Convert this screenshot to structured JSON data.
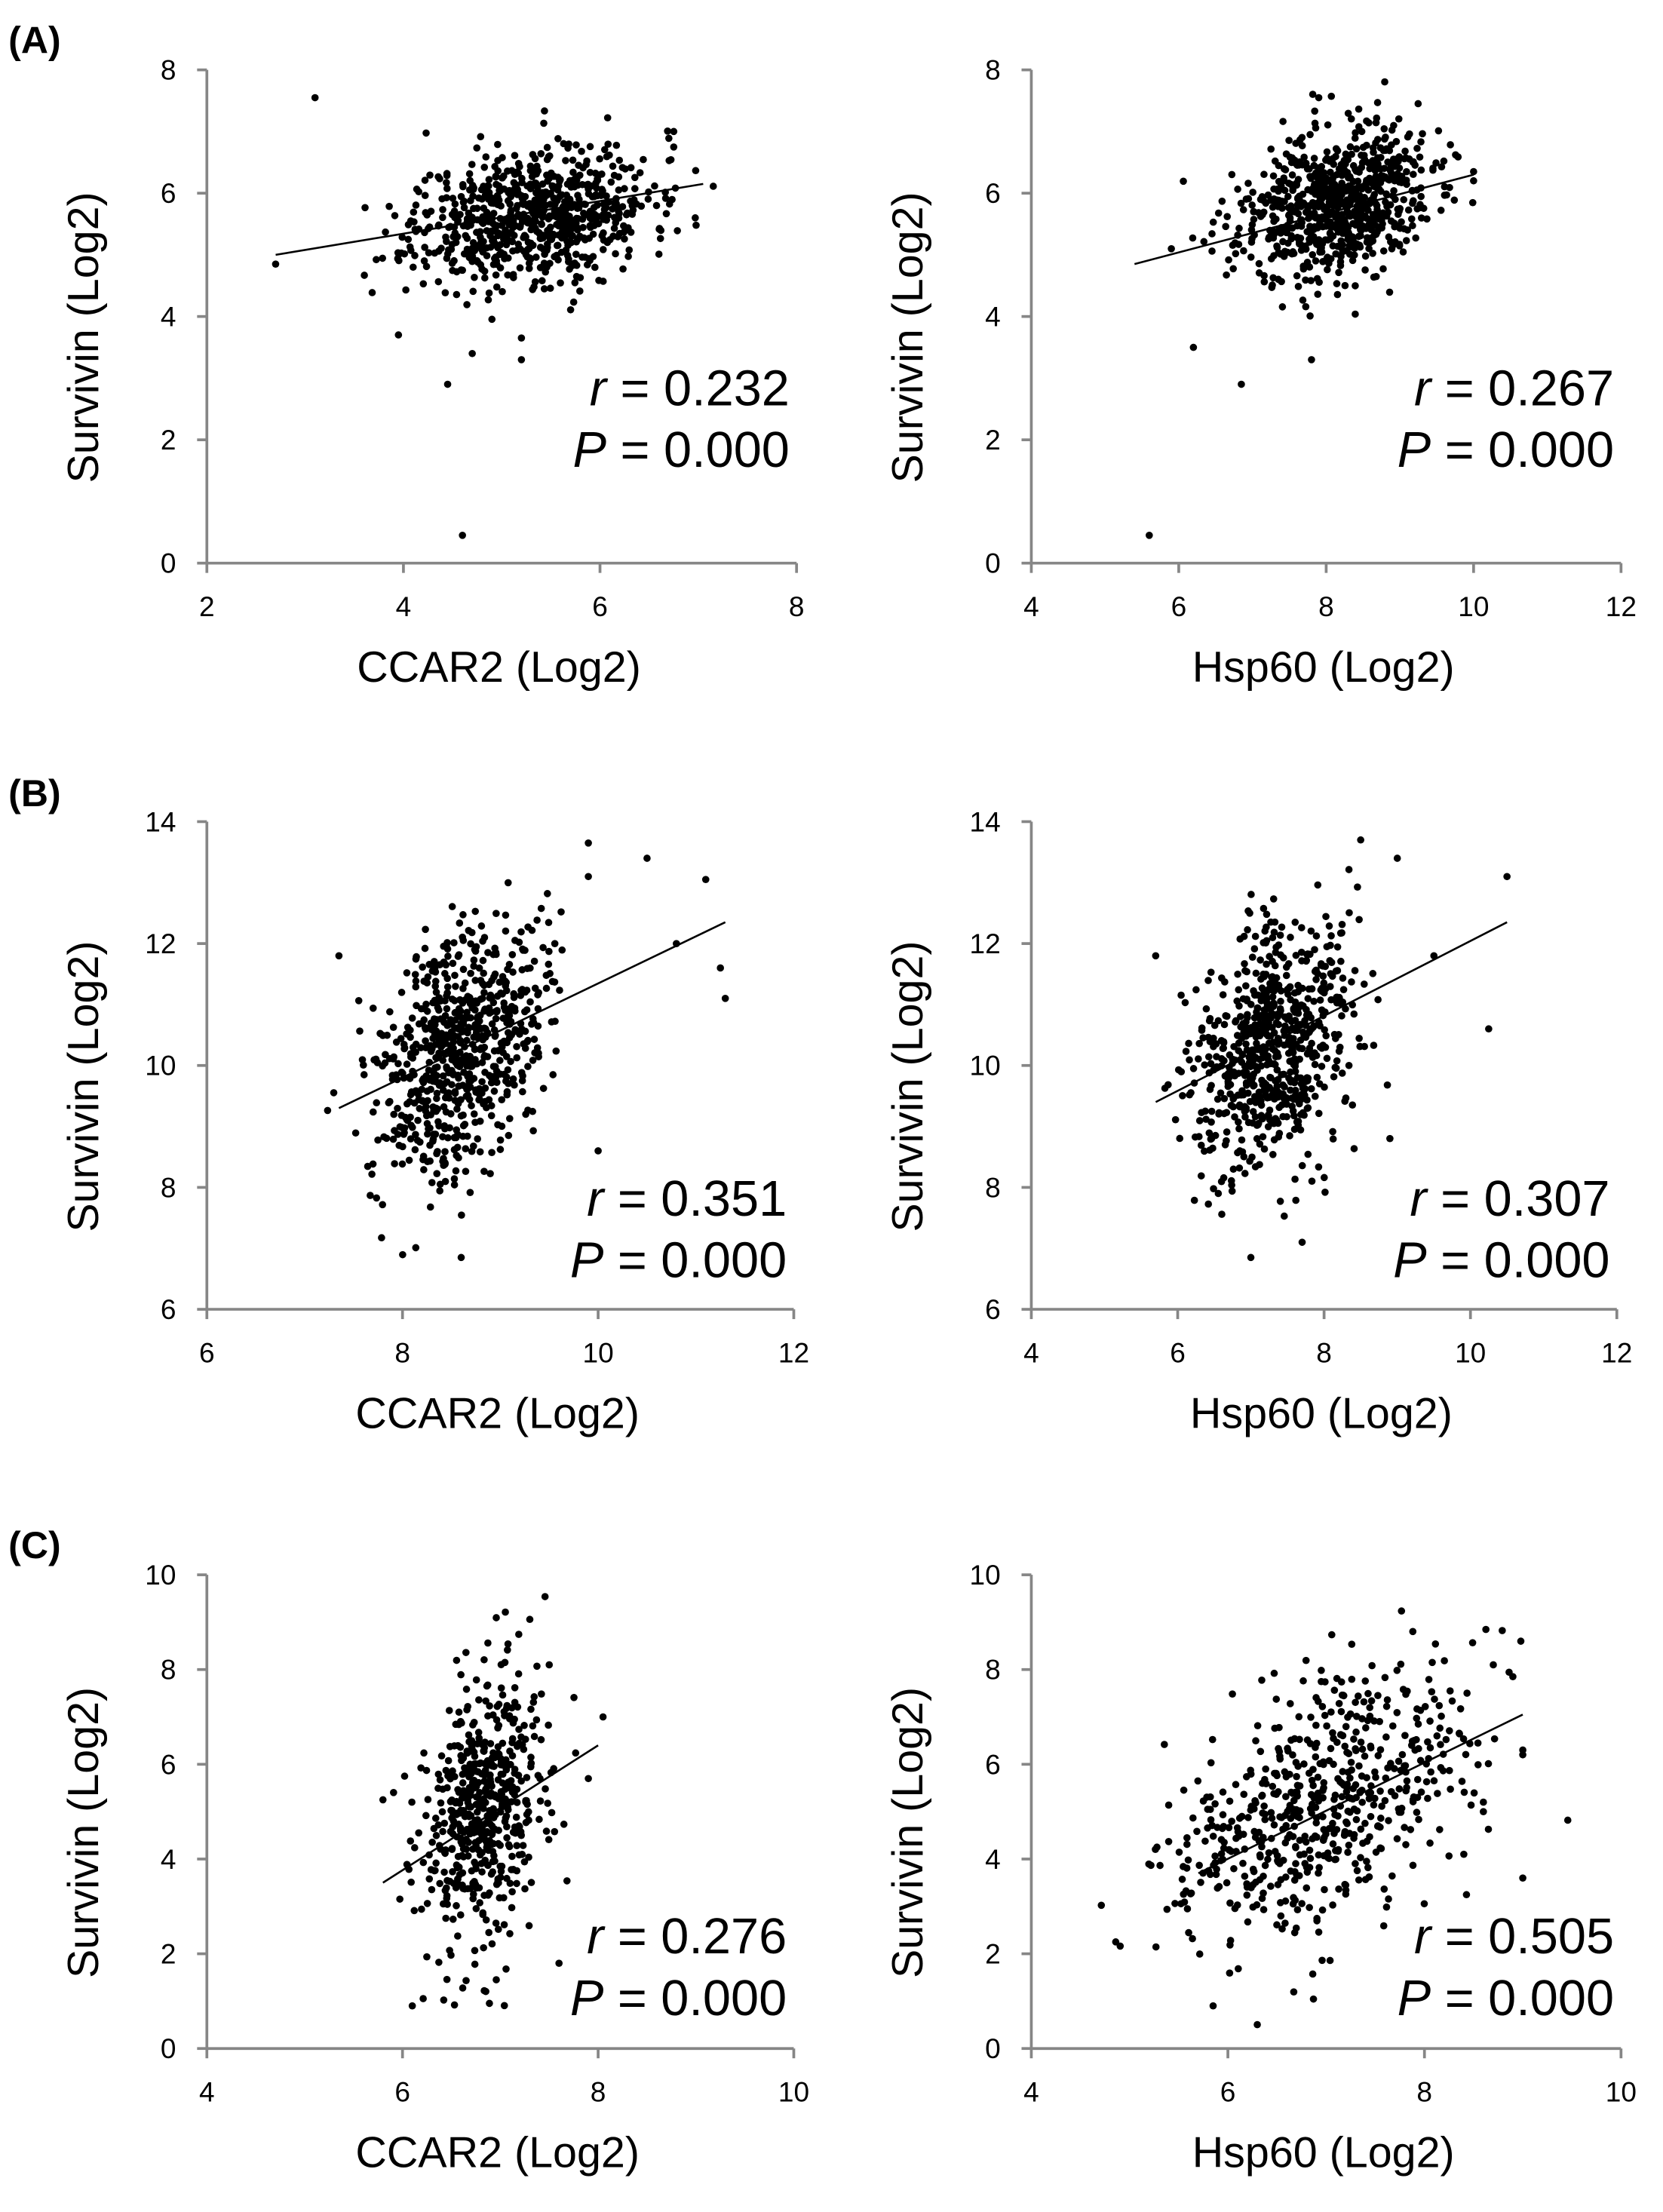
{
  "chart_data": [
    {
      "panel": "(A)",
      "type": "scatter",
      "xlabel": "CCAR2 (Log2)",
      "ylabel": "Survivin (Log2)",
      "xlim": [
        2,
        8
      ],
      "ylim": [
        0,
        8
      ],
      "xticks": [
        2,
        4,
        6,
        8
      ],
      "yticks": [
        0,
        2,
        4,
        6,
        8
      ],
      "stat": {
        "r_sym": "r",
        "r_text": "= 0.232",
        "p_sym": "P",
        "p_text": "= 0.000"
      },
      "fit": [
        [
          2.7,
          5.0
        ],
        [
          7.05,
          6.15
        ]
      ],
      "cloud": {
        "n": 750,
        "mx": 5.3,
        "sx": 0.6,
        "my": 5.65,
        "sy": 0.55,
        "r": 0.232,
        "seed": 11
      },
      "points": [
        [
          3.1,
          7.55
        ],
        [
          4.6,
          0.45
        ],
        [
          2.7,
          4.85
        ],
        [
          4.45,
          2.9
        ],
        [
          3.95,
          3.7
        ],
        [
          4.7,
          3.4
        ],
        [
          5.2,
          3.3
        ],
        [
          5.2,
          3.65
        ],
        [
          6.75,
          7.0
        ],
        [
          6.75,
          6.75
        ]
      ]
    },
    {
      "panel": "(A)",
      "type": "scatter",
      "xlabel": "Hsp60 (Log2)",
      "ylabel": "Survivin (Log2)",
      "xlim": [
        4,
        12
      ],
      "ylim": [
        0,
        8
      ],
      "xticks": [
        4,
        6,
        8,
        10,
        12
      ],
      "yticks": [
        0,
        2,
        4,
        6,
        8
      ],
      "stat": {
        "r_sym": "r",
        "r_text": "= 0.267",
        "p_sym": "P",
        "p_text": "= 0.000"
      },
      "fit": [
        [
          5.4,
          4.85
        ],
        [
          10.0,
          6.3
        ]
      ],
      "cloud": {
        "n": 750,
        "mx": 8.1,
        "sx": 0.65,
        "my": 5.8,
        "sy": 0.6,
        "r": 0.267,
        "seed": 23
      },
      "points": [
        [
          5.6,
          0.45
        ],
        [
          6.2,
          3.5
        ],
        [
          6.85,
          2.9
        ],
        [
          7.9,
          7.55
        ],
        [
          10.0,
          6.2
        ],
        [
          10.0,
          6.35
        ],
        [
          7.8,
          3.3
        ],
        [
          5.9,
          5.1
        ]
      ]
    },
    {
      "panel": "(B)",
      "type": "scatter",
      "xlabel": "CCAR2 (Log2)",
      "ylabel": "Survivin (Log2)",
      "xlim": [
        6,
        12
      ],
      "ylim": [
        6,
        14
      ],
      "xticks": [
        6,
        8,
        10,
        12
      ],
      "yticks": [
        6,
        8,
        10,
        12,
        14
      ],
      "stat": {
        "r_sym": "r",
        "r_text": "= 0.351",
        "p_sym": "P",
        "p_text": "= 0.000"
      },
      "fit": [
        [
          7.35,
          9.3
        ],
        [
          11.3,
          12.35
        ]
      ],
      "cloud": {
        "n": 700,
        "mx": 8.6,
        "sx": 0.42,
        "my": 10.3,
        "sy": 1.05,
        "r": 0.351,
        "seed": 37
      },
      "points": [
        [
          9.9,
          13.65
        ],
        [
          10.5,
          13.4
        ],
        [
          11.1,
          13.05
        ],
        [
          11.3,
          11.1
        ],
        [
          11.25,
          11.6
        ],
        [
          10.0,
          8.6
        ],
        [
          7.35,
          11.8
        ],
        [
          8.6,
          6.85
        ],
        [
          10.8,
          12.0
        ],
        [
          9.9,
          13.1
        ]
      ]
    },
    {
      "panel": "(B)",
      "type": "scatter",
      "xlabel": "Hsp60 (Log2)",
      "ylabel": "Survivin (Log2)",
      "xlim": [
        4,
        12
      ],
      "ylim": [
        6,
        14
      ],
      "xticks": [
        4,
        6,
        8,
        10,
        12
      ],
      "yticks": [
        6,
        8,
        10,
        12,
        14
      ],
      "stat": {
        "r_sym": "r",
        "r_text": "= 0.307",
        "p_sym": "P",
        "p_text": "= 0.000"
      },
      "fit": [
        [
          5.7,
          9.4
        ],
        [
          10.5,
          12.35
        ]
      ],
      "cloud": {
        "n": 700,
        "mx": 7.3,
        "sx": 0.55,
        "my": 10.3,
        "sy": 1.05,
        "r": 0.307,
        "seed": 41
      },
      "points": [
        [
          8.5,
          13.7
        ],
        [
          10.5,
          13.1
        ],
        [
          10.25,
          10.6
        ],
        [
          8.9,
          8.8
        ],
        [
          7.0,
          6.85
        ],
        [
          5.7,
          11.8
        ],
        [
          9.0,
          13.4
        ],
        [
          9.5,
          11.8
        ],
        [
          7.7,
          7.1
        ]
      ]
    },
    {
      "panel": "(C)",
      "type": "scatter",
      "xlabel": "CCAR2 (Log2)",
      "ylabel": "Survivin (Log2)",
      "xlim": [
        4,
        10
      ],
      "ylim": [
        0,
        10
      ],
      "xticks": [
        4,
        6,
        8,
        10
      ],
      "yticks": [
        0,
        2,
        4,
        6,
        8,
        10
      ],
      "stat": {
        "r_sym": "r",
        "r_text": "= 0.276",
        "p_sym": "P",
        "p_text": "= 0.000"
      },
      "fit": [
        [
          5.8,
          3.5
        ],
        [
          8.0,
          6.4
        ]
      ],
      "cloud": {
        "n": 550,
        "mx": 6.85,
        "sx": 0.33,
        "my": 5.0,
        "sy": 1.5,
        "r": 0.276,
        "seed": 53
      },
      "points": [
        [
          7.5,
          8.1
        ],
        [
          8.05,
          7.0
        ],
        [
          6.1,
          0.9
        ],
        [
          5.8,
          5.25
        ],
        [
          7.9,
          5.7
        ],
        [
          7.6,
          1.8
        ]
      ]
    },
    {
      "panel": "(C)",
      "type": "scatter",
      "xlabel": "Hsp60 (Log2)",
      "ylabel": "Survivin (Log2)",
      "xlim": [
        4,
        10
      ],
      "ylim": [
        0,
        10
      ],
      "xticks": [
        4,
        6,
        8,
        10
      ],
      "yticks": [
        0,
        2,
        4,
        6,
        8,
        10
      ],
      "stat": {
        "r_sym": "r",
        "r_text": "= 0.505",
        "p_sym": "P",
        "p_text": "= 0.000"
      },
      "fit": [
        [
          5.7,
          3.7
        ],
        [
          9.0,
          7.05
        ]
      ],
      "cloud": {
        "n": 600,
        "mx": 6.9,
        "sx": 0.75,
        "my": 5.0,
        "sy": 1.45,
        "r": 0.505,
        "seed": 67
      },
      "points": [
        [
          9.0,
          3.6
        ],
        [
          8.7,
          8.1
        ],
        [
          5.85,
          0.9
        ],
        [
          9.0,
          6.2
        ],
        [
          9.0,
          6.3
        ],
        [
          8.9,
          7.85
        ],
        [
          8.6,
          5.2
        ],
        [
          8.6,
          5.0
        ],
        [
          8.4,
          4.1
        ]
      ]
    }
  ]
}
